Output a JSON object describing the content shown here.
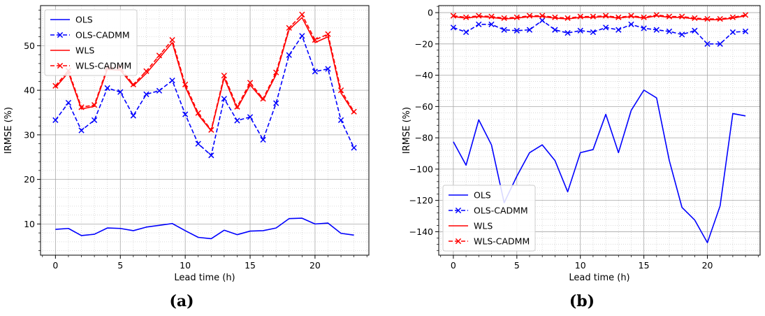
{
  "captions": {
    "a": "(a)",
    "b": "(b)"
  },
  "chart_data": [
    {
      "type": "line",
      "panel": "a",
      "xlabel": "Lead time (h)",
      "ylabel": "IRMSE (%)",
      "xlim": [
        -1.15,
        24.15
      ],
      "ylim": [
        3.0,
        59.0
      ],
      "xticks": [
        0,
        5,
        10,
        15,
        20
      ],
      "yticks": [
        10,
        20,
        30,
        40,
        50
      ],
      "grid": "major and minor (dotted)",
      "legend_position": "top-left",
      "x": [
        0,
        1,
        2,
        3,
        4,
        5,
        6,
        7,
        8,
        9,
        10,
        11,
        12,
        13,
        14,
        15,
        16,
        17,
        18,
        19,
        20,
        21,
        22,
        23
      ],
      "series": [
        {
          "name": "OLS",
          "color": "#0000ff",
          "linestyle": "solid",
          "marker": "none",
          "values": [
            8.8,
            9.0,
            7.4,
            7.7,
            9.1,
            9.0,
            8.5,
            9.3,
            9.7,
            10.1,
            8.5,
            7.0,
            6.7,
            8.6,
            7.6,
            8.4,
            8.5,
            9.1,
            11.2,
            11.3,
            10.0,
            10.2,
            7.9,
            7.5
          ]
        },
        {
          "name": "OLS-CADMM",
          "color": "#0000ff",
          "linestyle": "dashed",
          "marker": "x",
          "values": [
            33.3,
            37.2,
            31.0,
            33.3,
            40.5,
            39.6,
            34.3,
            39.1,
            39.9,
            42.2,
            34.6,
            28.0,
            25.4,
            38.1,
            33.2,
            34.0,
            28.9,
            37.1,
            47.9,
            52.2,
            44.2,
            44.8,
            33.3,
            27.1
          ]
        },
        {
          "name": "WLS",
          "color": "#ff0000",
          "linestyle": "solid",
          "marker": "none",
          "values": [
            40.6,
            44.0,
            35.8,
            36.4,
            44.7,
            44.5,
            41.0,
            43.8,
            47.2,
            50.7,
            40.8,
            34.5,
            30.9,
            42.8,
            35.9,
            41.2,
            37.8,
            43.5,
            53.6,
            56.3,
            50.7,
            52.0,
            39.4,
            34.9
          ]
        },
        {
          "name": "WLS-CADMM",
          "color": "#ff0000",
          "linestyle": "dashed",
          "marker": "x",
          "values": [
            41.0,
            44.4,
            36.2,
            36.7,
            45.1,
            45.0,
            41.3,
            44.3,
            47.8,
            51.3,
            41.3,
            34.9,
            31.1,
            43.3,
            36.3,
            41.7,
            38.1,
            44.0,
            54.0,
            57.0,
            51.3,
            52.6,
            40.0,
            35.2
          ]
        }
      ]
    },
    {
      "type": "line",
      "panel": "b",
      "xlabel": "Lead time (h)",
      "ylabel": "IRMSE (%)",
      "xlim": [
        -1.15,
        24.15
      ],
      "ylim": [
        -155.0,
        4.5
      ],
      "xticks": [
        0,
        5,
        10,
        15,
        20
      ],
      "yticks": [
        0,
        -20,
        -40,
        -60,
        -80,
        -100,
        -120,
        -140
      ],
      "yticklabels": [
        "0",
        "−20",
        "−40",
        "−60",
        "−80",
        "−100",
        "−120",
        "−140"
      ],
      "grid": "major and minor (dotted)",
      "legend_position": "bottom-left",
      "x": [
        0,
        1,
        2,
        3,
        4,
        5,
        6,
        7,
        8,
        9,
        10,
        11,
        12,
        13,
        14,
        15,
        16,
        17,
        18,
        19,
        20,
        21,
        22,
        23
      ],
      "series": [
        {
          "name": "OLS",
          "color": "#0000ff",
          "linestyle": "solid",
          "marker": "none",
          "values": [
            -82.5,
            -97.5,
            -68.5,
            -84.5,
            -121.5,
            -104.5,
            -89.5,
            -84.5,
            -94.5,
            -114.5,
            -89.5,
            -87.5,
            -65.0,
            -89.5,
            -62.5,
            -49.5,
            -54.5,
            -94.5,
            -124.5,
            -132.5,
            -147.0,
            -123.5,
            -64.5,
            -66.0
          ]
        },
        {
          "name": "OLS-CADMM",
          "color": "#0000ff",
          "linestyle": "dashed",
          "marker": "x",
          "values": [
            -9.5,
            -12.5,
            -7.5,
            -7.5,
            -11.0,
            -11.5,
            -11.0,
            -5.0,
            -11.0,
            -13.0,
            -11.5,
            -12.5,
            -9.5,
            -11.0,
            -7.5,
            -10.0,
            -11.0,
            -12.0,
            -14.0,
            -11.5,
            -20.0,
            -20.0,
            -12.5,
            -12.0
          ]
        },
        {
          "name": "WLS",
          "color": "#ff0000",
          "linestyle": "solid",
          "marker": "none",
          "values": [
            -2.5,
            -3.5,
            -2.5,
            -3.0,
            -4.0,
            -3.5,
            -2.5,
            -2.5,
            -3.5,
            -4.0,
            -3.0,
            -3.0,
            -2.5,
            -3.5,
            -2.5,
            -3.5,
            -2.0,
            -3.0,
            -3.0,
            -4.0,
            -4.5,
            -4.5,
            -3.5,
            -2.0
          ]
        },
        {
          "name": "WLS-CADMM",
          "color": "#ff0000",
          "linestyle": "dashed",
          "marker": "x",
          "values": [
            -2.0,
            -3.0,
            -2.0,
            -2.5,
            -3.5,
            -3.0,
            -2.0,
            -2.0,
            -3.0,
            -3.5,
            -2.5,
            -2.5,
            -2.0,
            -3.0,
            -2.0,
            -3.0,
            -1.5,
            -2.5,
            -2.5,
            -3.5,
            -4.0,
            -4.0,
            -3.0,
            -1.5
          ]
        }
      ]
    }
  ]
}
